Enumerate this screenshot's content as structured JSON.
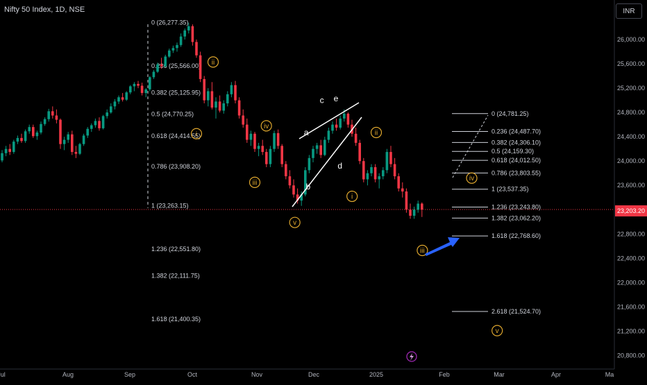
{
  "header": {
    "title": "Nifty 50 Index, 1D, NSE",
    "currency": "INR"
  },
  "chart_data": {
    "type": "candlestick",
    "y_axis": {
      "ticks": [
        "26,000.00",
        "25,600.00",
        "25,200.00",
        "24,800.00",
        "24,400.00",
        "24,000.00",
        "23,600.00",
        "23,200.00",
        "22,800.00",
        "22,400.00",
        "22,000.00",
        "21,600.00",
        "21,200.00",
        "20,800.00"
      ],
      "tick_values": [
        26000,
        25600,
        25200,
        24800,
        24400,
        24000,
        23600,
        23200,
        22800,
        22400,
        22000,
        21600,
        21200,
        20800
      ],
      "range": [
        20640,
        26700
      ],
      "current_price": "23,203.20",
      "current_value": 23203.2
    },
    "x_axis": {
      "labels": [
        "Jul",
        "Aug",
        "Sep",
        "Oct",
        "Nov",
        "Dec",
        "2025",
        "Feb",
        "Mar",
        "Apr",
        "Ma"
      ],
      "label_dates": [
        "2024-07-01",
        "2024-08-01",
        "2024-09-01",
        "2024-10-01",
        "2024-11-01",
        "2024-12-01",
        "2025-01-01",
        "2025-02-01",
        "2025-03-01",
        "2025-04-01",
        "2025-05-01"
      ]
    },
    "fib_left": [
      {
        "label": "0 (26,277.35)",
        "value": 26277.35
      },
      {
        "label": "0.236 (25,566.00)",
        "value": 25566.0
      },
      {
        "label": "0.382 (25,125.95)",
        "value": 25125.95
      },
      {
        "label": "0.5 (24,770.25)",
        "value": 24770.25
      },
      {
        "label": "0.618 (24,414.55)",
        "value": 24414.55
      },
      {
        "label": "0.786 (23,908.20)",
        "value": 23908.2
      },
      {
        "label": "1 (23,263.15)",
        "value": 23263.15
      },
      {
        "label": "1.236 (22,551.80)",
        "value": 22551.8
      },
      {
        "label": "1.382 (22,111.75)",
        "value": 22111.75
      },
      {
        "label": "1.618 (21,400.35)",
        "value": 21400.35
      }
    ],
    "fib_right": [
      {
        "label": "0 (24,781.25)",
        "value": 24781.25
      },
      {
        "label": "0.236 (24,487.70)",
        "value": 24487.7
      },
      {
        "label": "0.382 (24,306.10)",
        "value": 24306.1
      },
      {
        "label": "0.5 (24,159.30)",
        "value": 24159.3
      },
      {
        "label": "0.618 (24,012.50)",
        "value": 24012.5
      },
      {
        "label": "0.786 (23,803.55)",
        "value": 23803.55
      },
      {
        "label": "1 (23,537.35)",
        "value": 23537.35
      },
      {
        "label": "1.236 (23,243.80)",
        "value": 23243.8
      },
      {
        "label": "1.382 (23,062.20)",
        "value": 23062.2
      },
      {
        "label": "1.618 (22,768.60)",
        "value": 22768.6
      },
      {
        "label": "2.618 (21,524.70)",
        "value": 21524.7
      }
    ],
    "wave_labels": [
      {
        "text": "ii",
        "date": "2024-10-11",
        "value": 25630,
        "circled": true
      },
      {
        "text": "i",
        "date": "2024-10-03",
        "value": 24450,
        "circled": true
      },
      {
        "text": "iv",
        "date": "2024-11-06",
        "value": 24580,
        "circled": true
      },
      {
        "text": "iii",
        "date": "2024-10-31",
        "value": 23650,
        "circled": true
      },
      {
        "text": "v",
        "date": "2024-11-21",
        "value": 22990,
        "circled": true
      },
      {
        "text": "i",
        "date": "2024-12-20",
        "value": 23420,
        "circled": true
      },
      {
        "text": "ii",
        "date": "2025-01-01",
        "value": 24470,
        "circled": true
      },
      {
        "text": "iii",
        "date": "2025-01-22",
        "value": 22530,
        "circled": true
      },
      {
        "text": "iv",
        "date": "2025-02-15",
        "value": 23720,
        "circled": true
      },
      {
        "text": "v",
        "date": "2025-02-28",
        "value": 21210,
        "circled": true
      },
      {
        "text": "a",
        "date": "2024-11-27",
        "value": 24470,
        "circled": false
      },
      {
        "text": "b",
        "date": "2024-11-28",
        "value": 23580,
        "circled": false
      },
      {
        "text": "c",
        "date": "2024-12-05",
        "value": 25000,
        "circled": false
      },
      {
        "text": "d",
        "date": "2024-12-14",
        "value": 23920,
        "circled": false
      },
      {
        "text": "e",
        "date": "2024-12-12",
        "value": 25030,
        "circled": false
      }
    ],
    "candles": [
      [
        24010,
        24180,
        23980,
        24130
      ],
      [
        24130,
        24250,
        24080,
        24200
      ],
      [
        24200,
        24280,
        24100,
        24150
      ],
      [
        24150,
        24350,
        24120,
        24320
      ],
      [
        24320,
        24420,
        24280,
        24380
      ],
      [
        24380,
        24450,
        24300,
        24330
      ],
      [
        24330,
        24520,
        24300,
        24490
      ],
      [
        24490,
        24600,
        24450,
        24560
      ],
      [
        24560,
        24600,
        24380,
        24410
      ],
      [
        24410,
        24500,
        24350,
        24470
      ],
      [
        24470,
        24650,
        24440,
        24610
      ],
      [
        24610,
        24720,
        24580,
        24690
      ],
      [
        24690,
        24860,
        24650,
        24820
      ],
      [
        24820,
        24900,
        24700,
        24750
      ],
      [
        24750,
        24850,
        24620,
        24680
      ],
      [
        24680,
        24700,
        24200,
        24280
      ],
      [
        24280,
        24400,
        24180,
        24350
      ],
      [
        24350,
        24480,
        24300,
        24440
      ],
      [
        24440,
        24500,
        24100,
        24150
      ],
      [
        24150,
        24250,
        24050,
        24120
      ],
      [
        24120,
        24300,
        24100,
        24280
      ],
      [
        24280,
        24450,
        24250,
        24420
      ],
      [
        24420,
        24560,
        24380,
        24530
      ],
      [
        24530,
        24620,
        24480,
        24590
      ],
      [
        24590,
        24700,
        24550,
        24660
      ],
      [
        24660,
        24720,
        24500,
        24540
      ],
      [
        24540,
        24760,
        24520,
        24740
      ],
      [
        24740,
        24850,
        24700,
        24800
      ],
      [
        24800,
        24950,
        24780,
        24900
      ],
      [
        24900,
        25020,
        24850,
        24980
      ],
      [
        24980,
        25080,
        24940,
        25050
      ],
      [
        25050,
        25120,
        24980,
        25010
      ],
      [
        25010,
        25150,
        24990,
        25130
      ],
      [
        25130,
        25250,
        25100,
        25230
      ],
      [
        25230,
        25300,
        25150,
        25270
      ],
      [
        25270,
        25320,
        25200,
        25240
      ],
      [
        25240,
        25290,
        25080,
        25120
      ],
      [
        25120,
        25200,
        25050,
        25180
      ],
      [
        25180,
        25400,
        25150,
        25380
      ],
      [
        25380,
        25500,
        25350,
        25470
      ],
      [
        25470,
        25620,
        25450,
        25590
      ],
      [
        25590,
        25700,
        25520,
        25560
      ],
      [
        25560,
        25750,
        25540,
        25720
      ],
      [
        25720,
        25850,
        25700,
        25820
      ],
      [
        25820,
        25900,
        25780,
        25860
      ],
      [
        25860,
        25950,
        25800,
        25910
      ],
      [
        25910,
        26100,
        25880,
        26050
      ],
      [
        26050,
        26180,
        26000,
        26150
      ],
      [
        26150,
        26277,
        26100,
        26220
      ],
      [
        26220,
        26250,
        25900,
        25960
      ],
      [
        25960,
        26000,
        25700,
        25740
      ],
      [
        25740,
        25800,
        25300,
        25350
      ],
      [
        25350,
        25400,
        24950,
        25000
      ],
      [
        25000,
        25200,
        24900,
        25150
      ],
      [
        25150,
        25300,
        24850,
        24880
      ],
      [
        24880,
        25050,
        24700,
        24980
      ],
      [
        24980,
        25080,
        24800,
        24830
      ],
      [
        24830,
        25000,
        24780,
        24950
      ],
      [
        24950,
        25150,
        24900,
        25100
      ],
      [
        25100,
        25300,
        25050,
        25250
      ],
      [
        25250,
        25320,
        24950,
        25000
      ],
      [
        25000,
        25050,
        24700,
        24750
      ],
      [
        24750,
        24850,
        24550,
        24600
      ],
      [
        24600,
        24700,
        24300,
        24350
      ],
      [
        24350,
        24500,
        24250,
        24450
      ],
      [
        24450,
        24480,
        24150,
        24200
      ],
      [
        24200,
        24300,
        24080,
        24250
      ],
      [
        24250,
        24350,
        24100,
        24150
      ],
      [
        24150,
        24200,
        23900,
        23950
      ],
      [
        23950,
        24250,
        23900,
        24200
      ],
      [
        24200,
        24500,
        24150,
        24460
      ],
      [
        24460,
        24520,
        24200,
        24250
      ],
      [
        24250,
        24280,
        23900,
        23950
      ],
      [
        23950,
        24000,
        23700,
        23750
      ],
      [
        23750,
        23850,
        23550,
        23600
      ],
      [
        23600,
        23700,
        23400,
        23450
      ],
      [
        23450,
        23550,
        23300,
        23350
      ],
      [
        23350,
        23500,
        23263,
        23450
      ],
      [
        23450,
        23900,
        23420,
        23850
      ],
      [
        23850,
        24100,
        23800,
        24050
      ],
      [
        24050,
        24250,
        23980,
        24200
      ],
      [
        24200,
        24300,
        24120,
        24260
      ],
      [
        24260,
        24350,
        24050,
        24100
      ],
      [
        24100,
        24400,
        24080,
        24350
      ],
      [
        24350,
        24550,
        24300,
        24500
      ],
      [
        24500,
        24650,
        24450,
        24600
      ],
      [
        24600,
        24700,
        24500,
        24550
      ],
      [
        24550,
        24750,
        24520,
        24700
      ],
      [
        24700,
        24850,
        24650,
        24780
      ],
      [
        24780,
        24800,
        24550,
        24600
      ],
      [
        24600,
        24680,
        24400,
        24450
      ],
      [
        24450,
        24550,
        24250,
        24300
      ],
      [
        24300,
        24350,
        23950,
        24000
      ],
      [
        24000,
        24050,
        23650,
        23700
      ],
      [
        23700,
        23850,
        23600,
        23800
      ],
      [
        23800,
        23950,
        23750,
        23900
      ],
      [
        23900,
        23950,
        23650,
        23700
      ],
      [
        23700,
        23800,
        23550,
        23750
      ],
      [
        23750,
        23900,
        23700,
        23850
      ],
      [
        23850,
        24200,
        23800,
        24150
      ],
      [
        24150,
        24250,
        23900,
        23950
      ],
      [
        23950,
        24050,
        23700,
        23750
      ],
      [
        23750,
        23800,
        23500,
        23550
      ],
      [
        23550,
        23650,
        23400,
        23500
      ],
      [
        23500,
        23550,
        23150,
        23200
      ],
      [
        23200,
        23300,
        23050,
        23100
      ],
      [
        23100,
        23250,
        23050,
        23200
      ],
      [
        23200,
        23350,
        23150,
        23300
      ],
      [
        23300,
        23320,
        23080,
        23203
      ]
    ]
  }
}
